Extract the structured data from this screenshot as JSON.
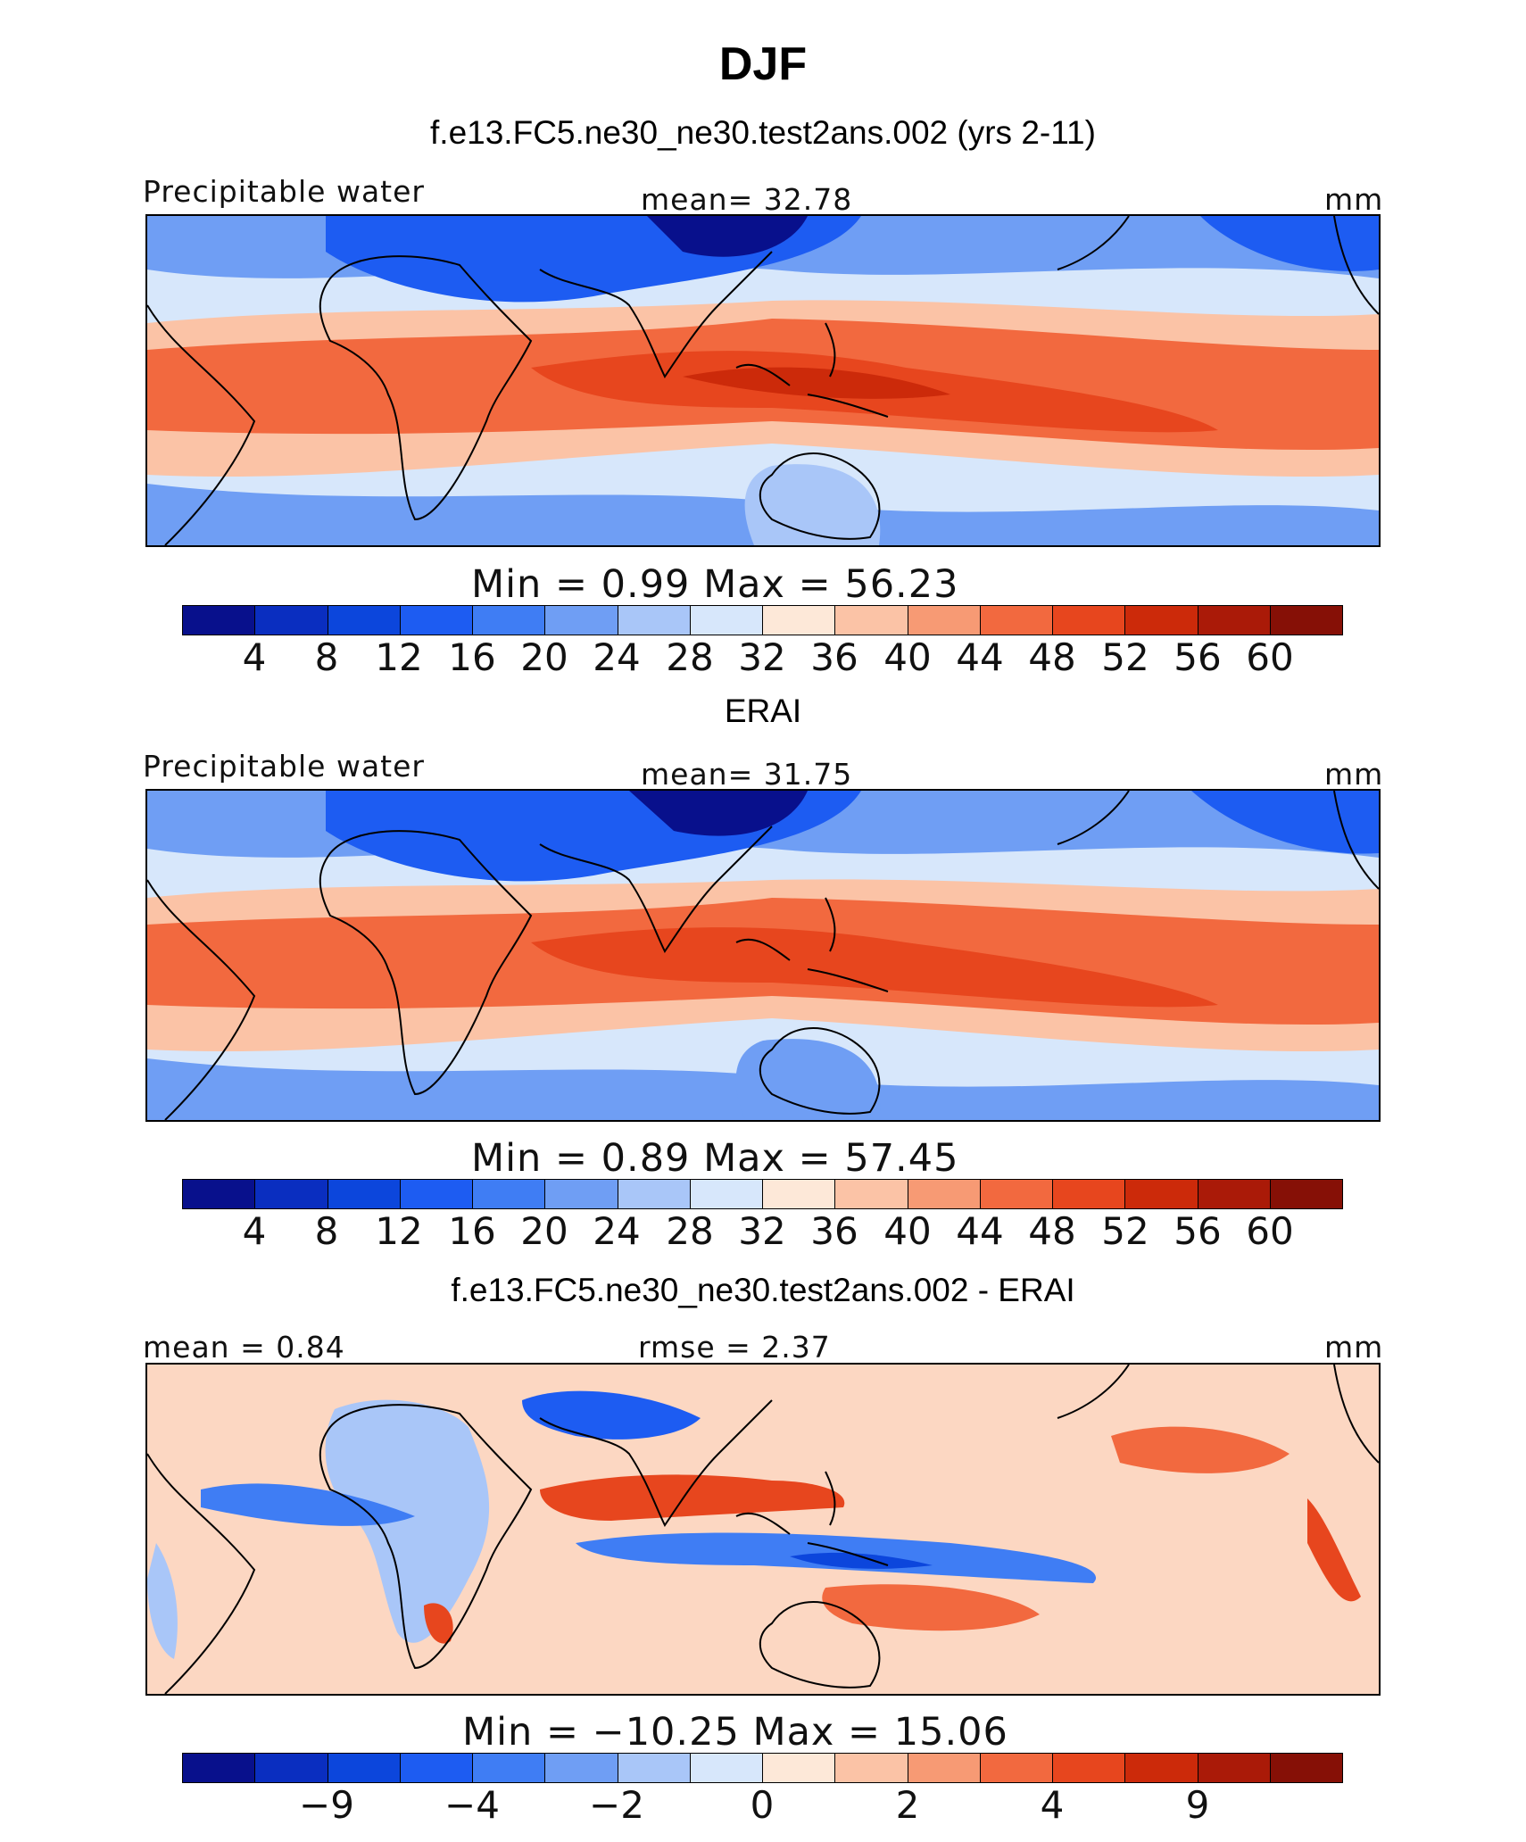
{
  "title": "DJF",
  "colors": {
    "palette": [
      "#08108c",
      "#0a2ec0",
      "#0c46dc",
      "#1d5cf2",
      "#3f7df4",
      "#6f9ef4",
      "#a9c6f8",
      "#d7e7fb",
      "#fde8d8",
      "#fbc3a6",
      "#f79a74",
      "#f2693f",
      "#e7461e",
      "#cc2a0a",
      "#aa1a08",
      "#861006"
    ]
  },
  "panels": [
    {
      "title": "f.e13.FC5.ne30_ne30.test2ans.002 (yrs 2-11)",
      "left_label": "Precipitable water",
      "center_label": "mean=   32.78",
      "right_label": "mm",
      "minmax": "Min =     0.99  Max =    56.23",
      "ticks": [
        "4",
        "8",
        "12",
        "16",
        "20",
        "24",
        "28",
        "32",
        "36",
        "40",
        "44",
        "48",
        "52",
        "56",
        "60"
      ]
    },
    {
      "title": "ERAI",
      "left_label": "Precipitable water",
      "center_label": "mean=   31.75",
      "right_label": "mm",
      "minmax": "Min =     0.89  Max =    57.45",
      "ticks": [
        "4",
        "8",
        "12",
        "16",
        "20",
        "24",
        "28",
        "32",
        "36",
        "40",
        "44",
        "48",
        "52",
        "56",
        "60"
      ]
    },
    {
      "title": "f.e13.FC5.ne30_ne30.test2ans.002 - ERAI",
      "left_label": "mean =    0.84",
      "center_label": "rmse =     2.37",
      "right_label": "mm",
      "minmax": "Min = −10.25  Max =    15.06",
      "ticks": [
        "−9",
        "−4",
        "−2",
        "0",
        "2",
        "4",
        "9"
      ]
    }
  ]
}
